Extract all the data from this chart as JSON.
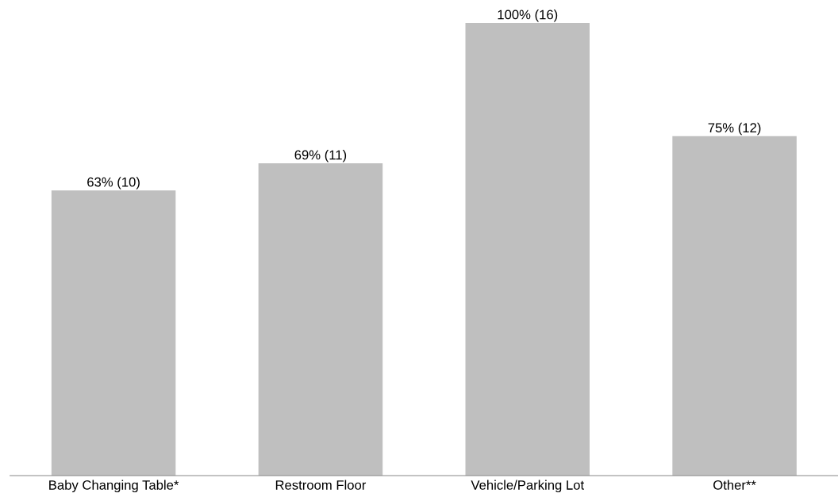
{
  "chart_data": {
    "type": "bar",
    "categories": [
      "Baby Changing Table*",
      "Restroom Floor",
      "Vehicle/Parking Lot",
      "Other**"
    ],
    "values": [
      63,
      69,
      100,
      75
    ],
    "value_labels": [
      "63% (10)",
      "69% (11)",
      "100% (16)",
      "75% (12)"
    ],
    "color": "#bfbfbf",
    "grid": false,
    "legend": false
  }
}
